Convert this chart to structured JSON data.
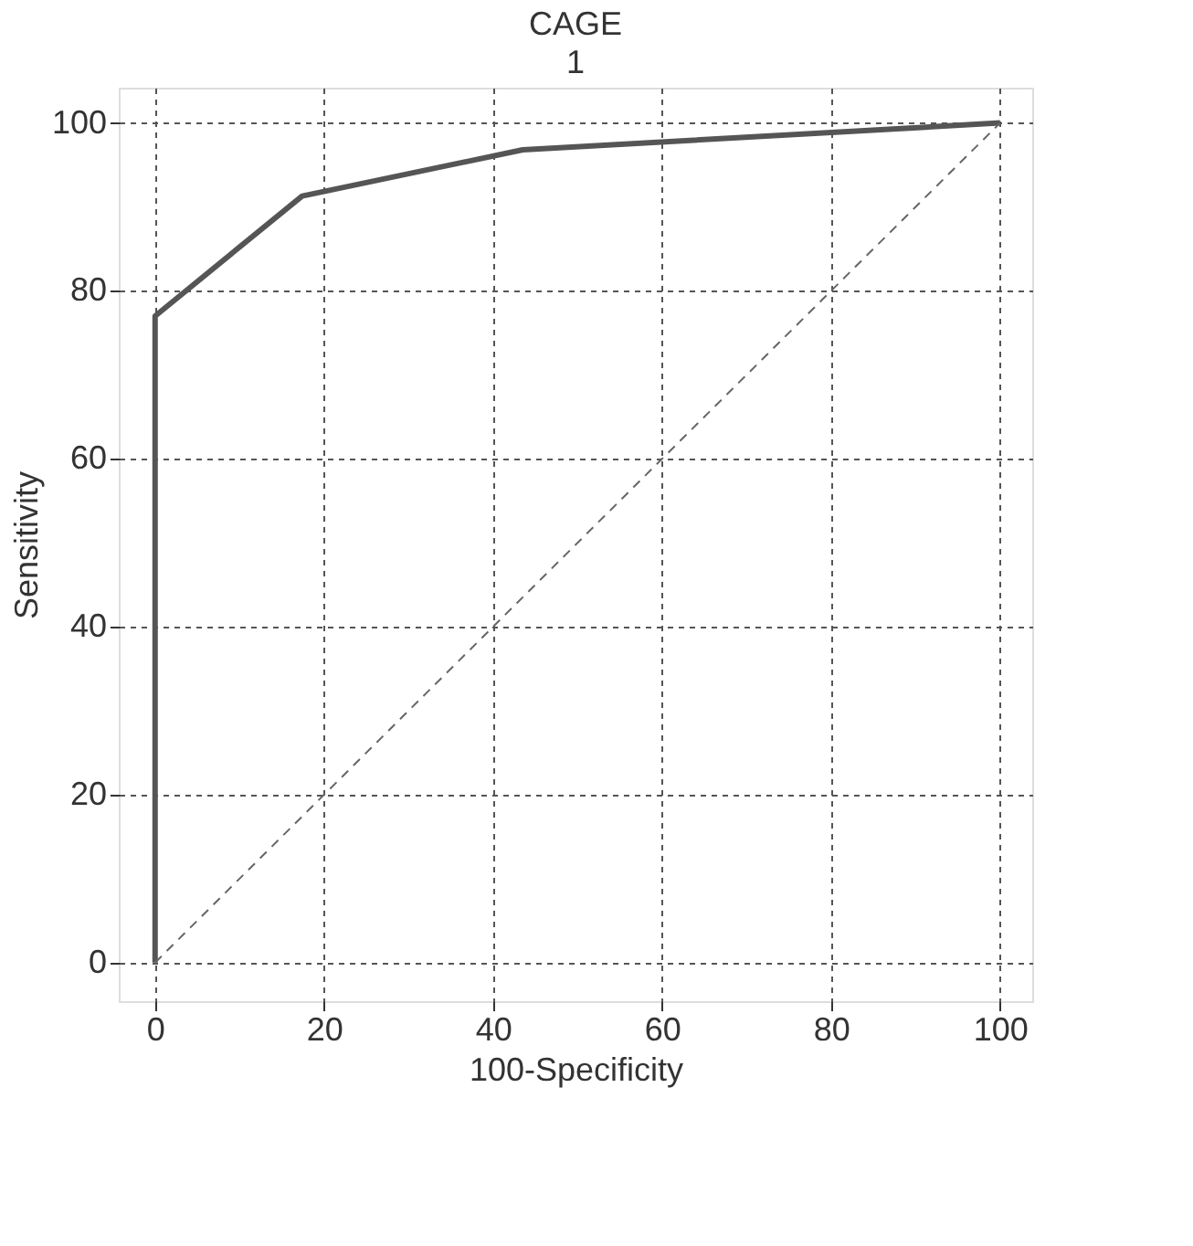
{
  "chart_data": {
    "type": "line",
    "title": "CAGE",
    "subtitle": "1",
    "xlabel": "100-Specificity",
    "ylabel": "Sensitivity",
    "xlim": [
      -4.3,
      103.8
    ],
    "ylim": [
      -4.6,
      104.2
    ],
    "xticks": [
      0,
      20,
      40,
      60,
      80,
      100
    ],
    "yticks": [
      0,
      20,
      40,
      60,
      80,
      100
    ],
    "grid": true,
    "marker": "none",
    "series": [
      {
        "color": "#555555",
        "x": [
          0,
          0,
          17.4,
          43.5,
          100
        ],
        "values": [
          0,
          77,
          91.3,
          96.8,
          100
        ],
        "line_style": "solid"
      },
      {
        "color": "#666666",
        "x": [
          0,
          100
        ],
        "values": [
          0,
          100
        ],
        "line_style": "dashed"
      }
    ]
  }
}
